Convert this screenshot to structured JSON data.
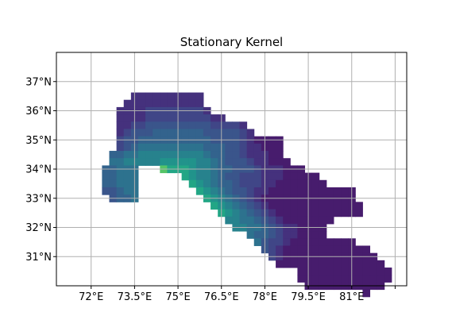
{
  "chart_data": {
    "type": "heatmap",
    "title": "Stationary Kernel",
    "xlabel": "",
    "ylabel": "",
    "xlim": [
      70.8,
      82.9
    ],
    "ylim": [
      30.0,
      38.0
    ],
    "x_ticks": [
      {
        "value": 72,
        "label": "72°E"
      },
      {
        "value": 73.5,
        "label": "73.5°E"
      },
      {
        "value": 75,
        "label": "75°E"
      },
      {
        "value": 76.5,
        "label": "76.5°E"
      },
      {
        "value": 78,
        "label": "78°E"
      },
      {
        "value": 79.5,
        "label": "79.5°E"
      },
      {
        "value": 81,
        "label": "81°E"
      },
      {
        "value": 82.5,
        "label": ""
      }
    ],
    "y_ticks": [
      {
        "value": 31,
        "label": "31°N"
      },
      {
        "value": 32,
        "label": "32°N"
      },
      {
        "value": 33,
        "label": "33°N"
      },
      {
        "value": 34,
        "label": "34°N"
      },
      {
        "value": 35,
        "label": "35°N"
      },
      {
        "value": 36,
        "label": "36°N"
      },
      {
        "value": 37,
        "label": "37°N"
      }
    ],
    "grid": true,
    "colormap": "viridis",
    "cell_size_deg": 0.25,
    "x0": 71.875,
    "y_top": 37.125,
    "code_values": {
      "0": null,
      "1": 0.1,
      "2": 0.18,
      "3": 0.26,
      "4": 0.33,
      "5": 0.4,
      "6": 0.47,
      "7": 0.55,
      "8": 0.64,
      "9": 0.74,
      "A": 0.86,
      "B": 0.94
    },
    "rows": [
      "0000000000000000000000000000000000000000000000000000000",
      "0000000000000000000000000000000000000000000000000000000",
      "0000002222222222000000000000000000000000000000000000000",
      "0000022222222222000000000000000000000000000000000000000",
      "0000222233333333200000000000000000000000000000000000000",
      "0000222233333333322000000000000000000000000000000000000",
      "0000223344444444433332000000000000000000000000000000000",
      "0000234445555555444443200000000000000000000000000000000",
      "0000344555555555544443211110000000000000000000000000000",
      "0000345666666666555443221110000000000000000000000000000",
      "0005566777777777655443222110000000000000000000000000000",
      "0006677777888887765444322111000000000000000000000000000",
      "0055666000A99987765544432221110000000000000000000000000",
      "0055666000000987765443332221111100000000000000000000000",
      "0055666000000098765543332211111110000000000000000000000",
      "0044566000000009876544322111111111111000000000000000000",
      "0004556000000000987654321111111111111000000000000000000",
      "0000000000000000098765432111111111111100000000000000000",
      "0000000000000000009876543211111111111100000000000000000",
      "0000000000000000000776654321111111000000000000000000000",
      "0000000000000000000077665432211110000000000000000000000",
      "0000000000000000000000655432211110000000000000000000000",
      "0000000000000000000000064332111111111000000000000000000",
      "0000000000000000000000004321111111111110000000000000000",
      "0000000000000000000000000321111111111111000000000000000",
      "0000000000000000000000000011111111111111100000000000000",
      "0000000000000000000000000000011111111111110000000000000",
      "0000000000000000000000000000011111111111110000000000000",
      "0000000000000000000000000000001111111111100000000000000",
      "0000000000000000000000000000000000000010000000000000000"
    ]
  }
}
